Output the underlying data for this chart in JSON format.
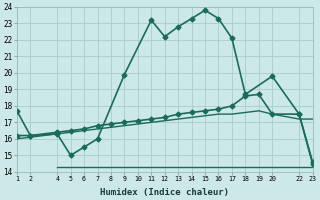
{
  "xlabel": "Humidex (Indice chaleur)",
  "background_color": "#cce8e8",
  "grid_color": "#aacccc",
  "line_color": "#1a6b5a",
  "xlim": [
    1,
    23
  ],
  "ylim": [
    14,
    24
  ],
  "yticks": [
    14,
    15,
    16,
    17,
    18,
    19,
    20,
    21,
    22,
    23,
    24
  ],
  "xticks": [
    1,
    2,
    4,
    5,
    6,
    7,
    8,
    9,
    10,
    11,
    12,
    13,
    14,
    15,
    16,
    17,
    18,
    19,
    20,
    22,
    23
  ],
  "series": [
    {
      "x": [
        1,
        2,
        4,
        5,
        6,
        7,
        9,
        11,
        12,
        13,
        14,
        15,
        16,
        17,
        18,
        20,
        22,
        23
      ],
      "y": [
        17.7,
        16.2,
        16.3,
        15.0,
        15.5,
        16.0,
        19.9,
        23.2,
        22.2,
        22.8,
        23.3,
        23.8,
        23.3,
        22.1,
        18.7,
        19.8,
        17.5,
        14.5
      ],
      "marker": "D",
      "markersize": 2.5,
      "linewidth": 1.2
    },
    {
      "x": [
        1,
        2,
        4,
        5,
        6,
        7,
        8,
        9,
        10,
        11,
        12,
        13,
        14,
        15,
        16,
        17,
        18,
        19,
        20,
        22,
        23
      ],
      "y": [
        16.2,
        16.2,
        16.4,
        16.5,
        16.6,
        16.8,
        16.9,
        17.0,
        17.1,
        17.2,
        17.3,
        17.5,
        17.6,
        17.7,
        17.8,
        18.0,
        18.6,
        18.7,
        17.5,
        17.5,
        14.6
      ],
      "marker": "D",
      "markersize": 2.5,
      "linewidth": 1.2
    },
    {
      "x": [
        1,
        2,
        4,
        5,
        6,
        7,
        8,
        9,
        10,
        11,
        12,
        13,
        14,
        15,
        16,
        17,
        18,
        19,
        20,
        22,
        23
      ],
      "y": [
        16.0,
        16.1,
        16.3,
        16.4,
        16.5,
        16.6,
        16.7,
        16.8,
        16.9,
        17.0,
        17.1,
        17.2,
        17.3,
        17.4,
        17.5,
        17.5,
        17.6,
        17.7,
        17.5,
        17.2,
        17.2
      ],
      "marker": null,
      "linewidth": 1.0
    },
    {
      "x": [
        4,
        23
      ],
      "y": [
        14.3,
        14.3
      ],
      "marker": null,
      "linewidth": 1.0
    }
  ]
}
